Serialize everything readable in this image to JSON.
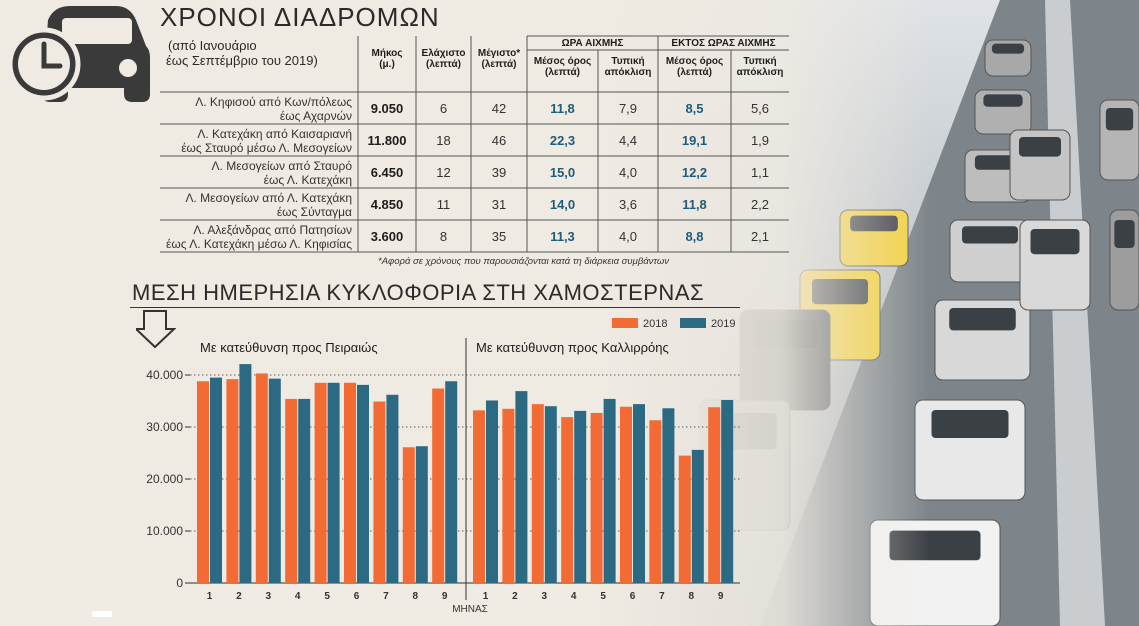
{
  "header": {
    "title": "ΧΡΟΝΟΙ ΔΙΑΔΡΟΜΩΝ",
    "subtitle_line1": "(από Ιανουάριο",
    "subtitle_line2": "έως Σεπτέμβριο του 2019)"
  },
  "table": {
    "columns": {
      "length": [
        "Μήκος",
        "(μ.)"
      ],
      "min": [
        "Ελάχιστο",
        "(λεπτά)"
      ],
      "max": [
        "Μέγιστο*",
        "(λεπτά)"
      ],
      "peak_group": "ΩΡΑ ΑΙΧΜΗΣ",
      "offpeak_group": "ΕΚΤΟΣ ΩΡΑΣ ΑΙΧΜΗΣ",
      "mean": [
        "Μέσος όρος",
        "(λεπτά)"
      ],
      "std": [
        "Τυπική",
        "απόκλιση"
      ]
    },
    "rows": [
      {
        "route": [
          "Λ. Κηφισού από Κων/πόλεως",
          "έως Αχαρνών"
        ],
        "length": "9.050",
        "min": "6",
        "max": "42",
        "peak_mean": "11,8",
        "peak_std": "7,9",
        "off_mean": "8,5",
        "off_std": "5,6"
      },
      {
        "route": [
          "Λ. Κατεχάκη από Καισαριανή",
          "έως Σταυρό μέσω Λ. Μεσογείων"
        ],
        "length": "11.800",
        "min": "18",
        "max": "46",
        "peak_mean": "22,3",
        "peak_std": "4,4",
        "off_mean": "19,1",
        "off_std": "1,9"
      },
      {
        "route": [
          "Λ. Μεσογείων από Σταυρό",
          "έως Λ. Κατεχάκη"
        ],
        "length": "6.450",
        "min": "12",
        "max": "39",
        "peak_mean": "15,0",
        "peak_std": "4,0",
        "off_mean": "12,2",
        "off_std": "1,1"
      },
      {
        "route": [
          "Λ. Μεσογείων από Λ. Κατεχάκη",
          "έως Σύνταγμα"
        ],
        "length": "4.850",
        "min": "11",
        "max": "31",
        "peak_mean": "14,0",
        "peak_std": "3,6",
        "off_mean": "11,8",
        "off_std": "2,2"
      },
      {
        "route": [
          "Λ. Αλεξάνδρας από Πατησίων",
          "έως Λ. Κατεχάκη μέσω Λ. Κηφισίας"
        ],
        "length": "3.600",
        "min": "8",
        "max": "35",
        "peak_mean": "11,3",
        "peak_std": "4,0",
        "off_mean": "8,8",
        "off_std": "2,1"
      }
    ],
    "footnote": "*Αφορά σε χρόνους που παρουσιάζονται κατά τη διάρκεια συμβάντων"
  },
  "chart_data": {
    "type": "bar",
    "title": "ΜΕΣΗ ΗΜΕΡΗΣΙΑ ΚΥΚΛΟΦΟΡΙΑ ΣΤΗ ΧΑΜΟΣΤΕΡΝΑΣ",
    "xlabel": "ΜΗΝΑΣ",
    "ylabel": "",
    "ylim": [
      0,
      45000
    ],
    "yticks": [
      0,
      10000,
      20000,
      30000,
      40000
    ],
    "ytick_labels": [
      "0",
      "10.000",
      "20.000",
      "30.000",
      "40.000"
    ],
    "categories": [
      "1",
      "2",
      "3",
      "4",
      "5",
      "6",
      "7",
      "8",
      "9"
    ],
    "legend": {
      "position": "top-right",
      "entries": [
        {
          "name": "2018",
          "color": "#f26b35"
        },
        {
          "name": "2019",
          "color": "#2b6a82"
        }
      ]
    },
    "panels": [
      {
        "label": "Με κατεύθυνση προς Πειραιώς",
        "series": [
          {
            "name": "2018",
            "color": "#f26b35",
            "values": [
              38800,
              39200,
              40300,
              35400,
              38500,
              38500,
              34900,
              26100,
              37400
            ]
          },
          {
            "name": "2019",
            "color": "#2b6a82",
            "values": [
              39500,
              42100,
              39300,
              35400,
              38500,
              38100,
              36200,
              26300,
              38800
            ]
          }
        ]
      },
      {
        "label": "Με κατεύθυνση προς Καλλιρρόης",
        "series": [
          {
            "name": "2018",
            "color": "#f26b35",
            "values": [
              33200,
              33500,
              34400,
              31900,
              32700,
              33900,
              31300,
              24500,
              33800
            ]
          },
          {
            "name": "2019",
            "color": "#2b6a82",
            "values": [
              35100,
              36900,
              34000,
              33100,
              35400,
              34400,
              33600,
              25600,
              35200
            ]
          }
        ]
      }
    ]
  }
}
